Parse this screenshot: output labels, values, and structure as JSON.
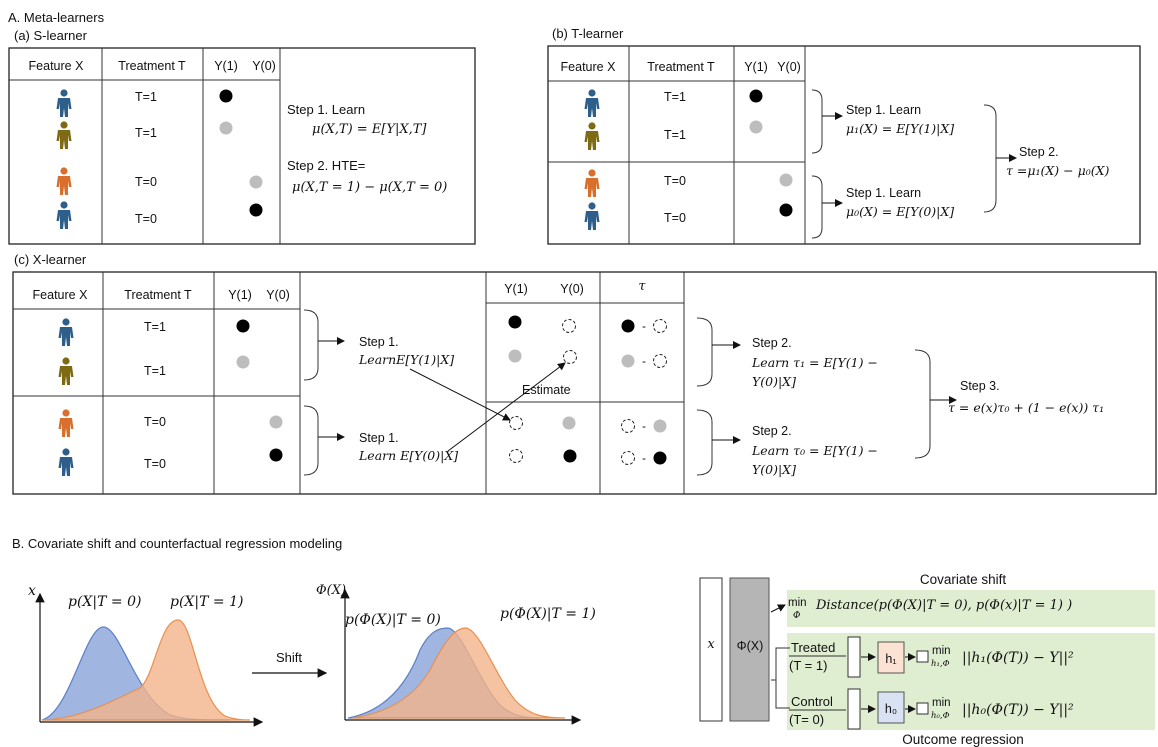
{
  "section_a": {
    "title": "A. Meta-learners",
    "s_learner": {
      "title": "(a) S-learner",
      "col_feature": "Feature X",
      "col_treatment": "Treatment T",
      "col_y1": "Y(1)",
      "col_y0": "Y(0)",
      "rows": [
        "T=1",
        "T=1",
        "T=0",
        "T=0"
      ],
      "step1_label": "Step 1. Learn",
      "step1_formula": "μ(X,T) = E[Y|X,T]",
      "step2_label": "Step 2. HTE=",
      "step2_formula": "μ(X,T = 1) − μ(X,T = 0)"
    },
    "t_learner": {
      "title": "(b) T-learner",
      "col_feature": "Feature X",
      "col_treatment": "Treatment T",
      "col_y1": "Y(1)",
      "col_y0": "Y(0)",
      "rows": [
        "T=1",
        "T=1",
        "T=0",
        "T=0"
      ],
      "step1a_label": "Step 1. Learn",
      "step1a_formula": "μ₁(X) = E[Y(1)|X]",
      "step1b_label": "Step 1. Learn",
      "step1b_formula": "μ₀(X) = E[Y(0)|X]",
      "step2_label": "Step 2.",
      "step2_formula": "τ =μ₁(X) − μ₀(X)"
    },
    "x_learner": {
      "title": "(c) X-learner",
      "col_feature": "Feature X",
      "col_treatment": "Treatment T",
      "col_y1": "Y(1)",
      "col_y0": "Y(0)",
      "rows": [
        "T=1",
        "T=1",
        "T=0",
        "T=0"
      ],
      "step1a_label": "Step 1.",
      "step1a_formula": "LearnE[Y(1)|X]",
      "step1b_label": "Step 1.",
      "step1b_formula": "Learn E[Y(0)|X]",
      "col2_y1": "Y(1)",
      "col2_y0": "Y(0)",
      "col2_tau": "τ",
      "estimate_label": "Estimate",
      "minus": "-",
      "step2a_label": "Step 2.",
      "step2a_line1": "Learn τ₁ = E[Y(1) −",
      "step2a_line2": "Y(0)|X]",
      "step2b_label": "Step 2.",
      "step2b_line1": "Learn τ₀ = E[Y(1) −",
      "step2b_line2": "Y(0)|X]",
      "step3_label": "Step 3.",
      "step3_formula": "τ = e(x)τ₀ + (1 − e(x)) τ₁"
    }
  },
  "section_b": {
    "title": "B. Covariate shift and counterfactual regression modeling",
    "plot1_axis": "x",
    "plot1_label_t0": "p(X|T = 0)",
    "plot1_label_t1": "p(X|T = 1)",
    "shift_label": "Shift",
    "plot2_axis": "Φ(X)",
    "plot2_label_t0": "p(Φ(X)|T = 0)",
    "plot2_label_t1": "p(Φ(X)|T = 1)",
    "network": {
      "input_label": "x",
      "phi_label": "Φ(X)",
      "covariate_title": "Covariate shift",
      "min_sub": "Φ",
      "covariate_formula": "Distance(p(Φ(X)|T = 0), p(Φ(x)|T = 1) )",
      "treated_label": "Treated",
      "treated_cond": "(T = 1)",
      "h1_label": "h₁",
      "h1_min_sub": "h₁,Φ",
      "h1_formula": "||h₁(Φ(T)) − Y||²",
      "control_label": "Control",
      "control_cond": "(T= 0)",
      "h0_label": "h₀",
      "h0_min_sub": "h₀,Φ",
      "h0_formula": "||h₀(Φ(T)) − Y||²",
      "min_word": "min",
      "outcome_title": "Outcome regression"
    }
  },
  "colors": {
    "person_blue": "#2e5f8a",
    "person_olive": "#7e6a15",
    "person_orange": "#d96f2c",
    "dist_blue": "#8fa9dc",
    "dist_orange": "#f2b48a",
    "green_band": "#dfedd1",
    "phi_box": "#b5b5b5",
    "h1_box": "#fbe2d2",
    "h0_box": "#d8e2f2",
    "gray_dot": "#bdbdbd"
  }
}
